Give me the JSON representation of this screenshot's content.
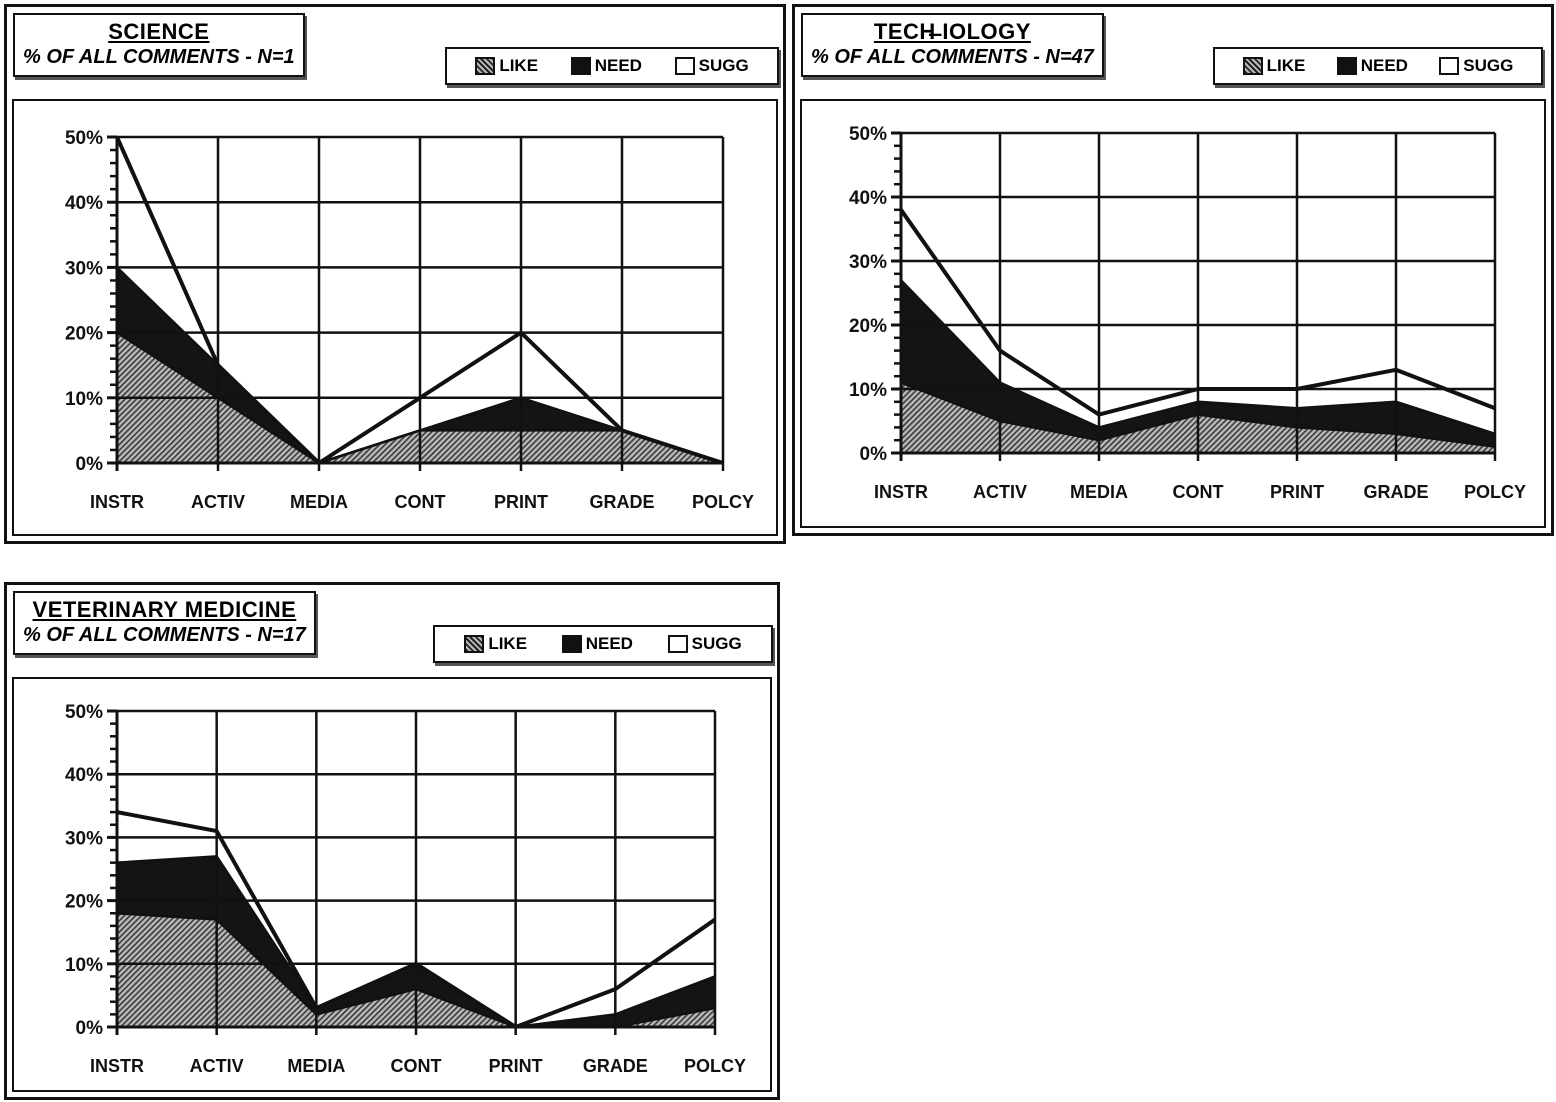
{
  "legend": {
    "like": "LIKE",
    "need": "NEED",
    "sugg": "SUGG"
  },
  "colors": {
    "like": "#8f8f8f",
    "need": "#141414",
    "sugg": "#ffffff",
    "line": "#111111"
  },
  "chart_data": [
    {
      "type": "area",
      "title": "SCIENCE",
      "subtitle": "% OF ALL COMMENTS - N=1",
      "categories": [
        "INSTR",
        "ACTIV",
        "MEDIA",
        "CONT",
        "PRINT",
        "GRADE",
        "POLCY"
      ],
      "yticks": [
        "0%",
        "10%",
        "20%",
        "30%",
        "40%",
        "50%"
      ],
      "ylim": [
        0,
        50
      ],
      "stacked": true,
      "grid": true,
      "legend_position": "top-right",
      "series": [
        {
          "name": "LIKE",
          "values": [
            20,
            10,
            0,
            5,
            5,
            5,
            0
          ]
        },
        {
          "name": "NEED",
          "values": [
            10,
            5,
            0,
            0,
            5,
            0,
            0
          ]
        },
        {
          "name": "SUGG",
          "values": [
            20,
            0,
            0,
            5,
            10,
            0,
            0
          ]
        }
      ]
    },
    {
      "type": "area",
      "title": "TECH̶ IOLOGY",
      "subtitle": "% OF ALL COMMENTS - N=47",
      "categories": [
        "INSTR",
        "ACTIV",
        "MEDIA",
        "CONT",
        "PRINT",
        "GRADE",
        "POLCY"
      ],
      "yticks": [
        "0%",
        "10%",
        "20%",
        "30%",
        "40%",
        "50%"
      ],
      "ylim": [
        0,
        50
      ],
      "stacked": true,
      "grid": true,
      "legend_position": "top-right",
      "series": [
        {
          "name": "LIKE",
          "values": [
            11,
            5,
            2,
            6,
            4,
            3,
            1
          ]
        },
        {
          "name": "NEED",
          "values": [
            16,
            6,
            2,
            2,
            3,
            5,
            2
          ]
        },
        {
          "name": "SUGG",
          "values": [
            11,
            5,
            2,
            2,
            3,
            5,
            4
          ]
        }
      ]
    },
    {
      "type": "area",
      "title": "VETERINARY MEDICINE",
      "subtitle": "% OF ALL COMMENTS - N=17",
      "categories": [
        "INSTR",
        "ACTIV",
        "MEDIA",
        "CONT",
        "PRINT",
        "GRADE",
        "POLCY"
      ],
      "yticks": [
        "0%",
        "10%",
        "20%",
        "30%",
        "40%",
        "50%"
      ],
      "ylim": [
        0,
        50
      ],
      "stacked": true,
      "grid": true,
      "legend_position": "top-right",
      "series": [
        {
          "name": "LIKE",
          "values": [
            18,
            17,
            2,
            6,
            0,
            0,
            3
          ]
        },
        {
          "name": "NEED",
          "values": [
            8,
            10,
            1,
            4,
            0,
            2,
            5
          ]
        },
        {
          "name": "SUGG",
          "values": [
            8,
            4,
            0,
            0,
            0,
            4,
            9
          ]
        }
      ]
    }
  ]
}
